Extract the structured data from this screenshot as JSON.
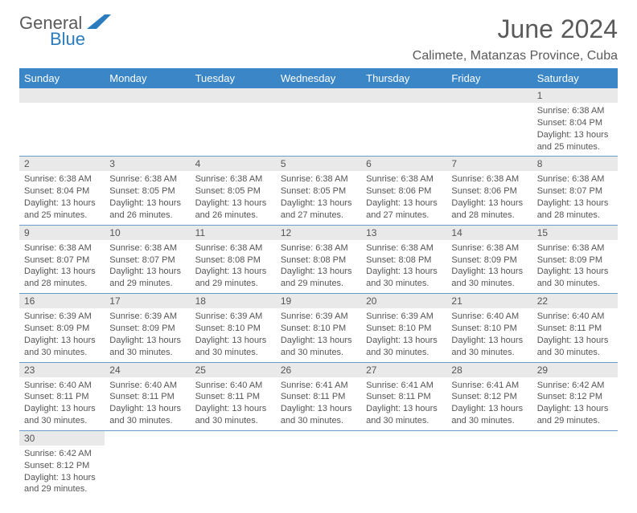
{
  "brand": {
    "part1": "General",
    "part2": "Blue"
  },
  "title": "June 2024",
  "location": "Calimete, Matanzas Province, Cuba",
  "colors": {
    "header_bg": "#3b86c6",
    "header_text": "#ffffff",
    "daynum_bg": "#e9e9e9",
    "border": "#6b9cc8",
    "body_text": "#555555",
    "title_text": "#5a5a5a",
    "brand_blue": "#2b7bbf"
  },
  "weekdays": [
    "Sunday",
    "Monday",
    "Tuesday",
    "Wednesday",
    "Thursday",
    "Friday",
    "Saturday"
  ],
  "weeks": [
    [
      {
        "blank": true
      },
      {
        "blank": true
      },
      {
        "blank": true
      },
      {
        "blank": true
      },
      {
        "blank": true
      },
      {
        "blank": true
      },
      {
        "n": "1",
        "sr": "Sunrise: 6:38 AM",
        "ss": "Sunset: 8:04 PM",
        "dl1": "Daylight: 13 hours",
        "dl2": "and 25 minutes."
      }
    ],
    [
      {
        "n": "2",
        "sr": "Sunrise: 6:38 AM",
        "ss": "Sunset: 8:04 PM",
        "dl1": "Daylight: 13 hours",
        "dl2": "and 25 minutes."
      },
      {
        "n": "3",
        "sr": "Sunrise: 6:38 AM",
        "ss": "Sunset: 8:05 PM",
        "dl1": "Daylight: 13 hours",
        "dl2": "and 26 minutes."
      },
      {
        "n": "4",
        "sr": "Sunrise: 6:38 AM",
        "ss": "Sunset: 8:05 PM",
        "dl1": "Daylight: 13 hours",
        "dl2": "and 26 minutes."
      },
      {
        "n": "5",
        "sr": "Sunrise: 6:38 AM",
        "ss": "Sunset: 8:05 PM",
        "dl1": "Daylight: 13 hours",
        "dl2": "and 27 minutes."
      },
      {
        "n": "6",
        "sr": "Sunrise: 6:38 AM",
        "ss": "Sunset: 8:06 PM",
        "dl1": "Daylight: 13 hours",
        "dl2": "and 27 minutes."
      },
      {
        "n": "7",
        "sr": "Sunrise: 6:38 AM",
        "ss": "Sunset: 8:06 PM",
        "dl1": "Daylight: 13 hours",
        "dl2": "and 28 minutes."
      },
      {
        "n": "8",
        "sr": "Sunrise: 6:38 AM",
        "ss": "Sunset: 8:07 PM",
        "dl1": "Daylight: 13 hours",
        "dl2": "and 28 minutes."
      }
    ],
    [
      {
        "n": "9",
        "sr": "Sunrise: 6:38 AM",
        "ss": "Sunset: 8:07 PM",
        "dl1": "Daylight: 13 hours",
        "dl2": "and 28 minutes."
      },
      {
        "n": "10",
        "sr": "Sunrise: 6:38 AM",
        "ss": "Sunset: 8:07 PM",
        "dl1": "Daylight: 13 hours",
        "dl2": "and 29 minutes."
      },
      {
        "n": "11",
        "sr": "Sunrise: 6:38 AM",
        "ss": "Sunset: 8:08 PM",
        "dl1": "Daylight: 13 hours",
        "dl2": "and 29 minutes."
      },
      {
        "n": "12",
        "sr": "Sunrise: 6:38 AM",
        "ss": "Sunset: 8:08 PM",
        "dl1": "Daylight: 13 hours",
        "dl2": "and 29 minutes."
      },
      {
        "n": "13",
        "sr": "Sunrise: 6:38 AM",
        "ss": "Sunset: 8:08 PM",
        "dl1": "Daylight: 13 hours",
        "dl2": "and 30 minutes."
      },
      {
        "n": "14",
        "sr": "Sunrise: 6:38 AM",
        "ss": "Sunset: 8:09 PM",
        "dl1": "Daylight: 13 hours",
        "dl2": "and 30 minutes."
      },
      {
        "n": "15",
        "sr": "Sunrise: 6:38 AM",
        "ss": "Sunset: 8:09 PM",
        "dl1": "Daylight: 13 hours",
        "dl2": "and 30 minutes."
      }
    ],
    [
      {
        "n": "16",
        "sr": "Sunrise: 6:39 AM",
        "ss": "Sunset: 8:09 PM",
        "dl1": "Daylight: 13 hours",
        "dl2": "and 30 minutes."
      },
      {
        "n": "17",
        "sr": "Sunrise: 6:39 AM",
        "ss": "Sunset: 8:09 PM",
        "dl1": "Daylight: 13 hours",
        "dl2": "and 30 minutes."
      },
      {
        "n": "18",
        "sr": "Sunrise: 6:39 AM",
        "ss": "Sunset: 8:10 PM",
        "dl1": "Daylight: 13 hours",
        "dl2": "and 30 minutes."
      },
      {
        "n": "19",
        "sr": "Sunrise: 6:39 AM",
        "ss": "Sunset: 8:10 PM",
        "dl1": "Daylight: 13 hours",
        "dl2": "and 30 minutes."
      },
      {
        "n": "20",
        "sr": "Sunrise: 6:39 AM",
        "ss": "Sunset: 8:10 PM",
        "dl1": "Daylight: 13 hours",
        "dl2": "and 30 minutes."
      },
      {
        "n": "21",
        "sr": "Sunrise: 6:40 AM",
        "ss": "Sunset: 8:10 PM",
        "dl1": "Daylight: 13 hours",
        "dl2": "and 30 minutes."
      },
      {
        "n": "22",
        "sr": "Sunrise: 6:40 AM",
        "ss": "Sunset: 8:11 PM",
        "dl1": "Daylight: 13 hours",
        "dl2": "and 30 minutes."
      }
    ],
    [
      {
        "n": "23",
        "sr": "Sunrise: 6:40 AM",
        "ss": "Sunset: 8:11 PM",
        "dl1": "Daylight: 13 hours",
        "dl2": "and 30 minutes."
      },
      {
        "n": "24",
        "sr": "Sunrise: 6:40 AM",
        "ss": "Sunset: 8:11 PM",
        "dl1": "Daylight: 13 hours",
        "dl2": "and 30 minutes."
      },
      {
        "n": "25",
        "sr": "Sunrise: 6:40 AM",
        "ss": "Sunset: 8:11 PM",
        "dl1": "Daylight: 13 hours",
        "dl2": "and 30 minutes."
      },
      {
        "n": "26",
        "sr": "Sunrise: 6:41 AM",
        "ss": "Sunset: 8:11 PM",
        "dl1": "Daylight: 13 hours",
        "dl2": "and 30 minutes."
      },
      {
        "n": "27",
        "sr": "Sunrise: 6:41 AM",
        "ss": "Sunset: 8:11 PM",
        "dl1": "Daylight: 13 hours",
        "dl2": "and 30 minutes."
      },
      {
        "n": "28",
        "sr": "Sunrise: 6:41 AM",
        "ss": "Sunset: 8:12 PM",
        "dl1": "Daylight: 13 hours",
        "dl2": "and 30 minutes."
      },
      {
        "n": "29",
        "sr": "Sunrise: 6:42 AM",
        "ss": "Sunset: 8:12 PM",
        "dl1": "Daylight: 13 hours",
        "dl2": "and 29 minutes."
      }
    ],
    [
      {
        "n": "30",
        "sr": "Sunrise: 6:42 AM",
        "ss": "Sunset: 8:12 PM",
        "dl1": "Daylight: 13 hours",
        "dl2": "and 29 minutes."
      },
      {
        "none": true
      },
      {
        "none": true
      },
      {
        "none": true
      },
      {
        "none": true
      },
      {
        "none": true
      },
      {
        "none": true
      }
    ]
  ]
}
